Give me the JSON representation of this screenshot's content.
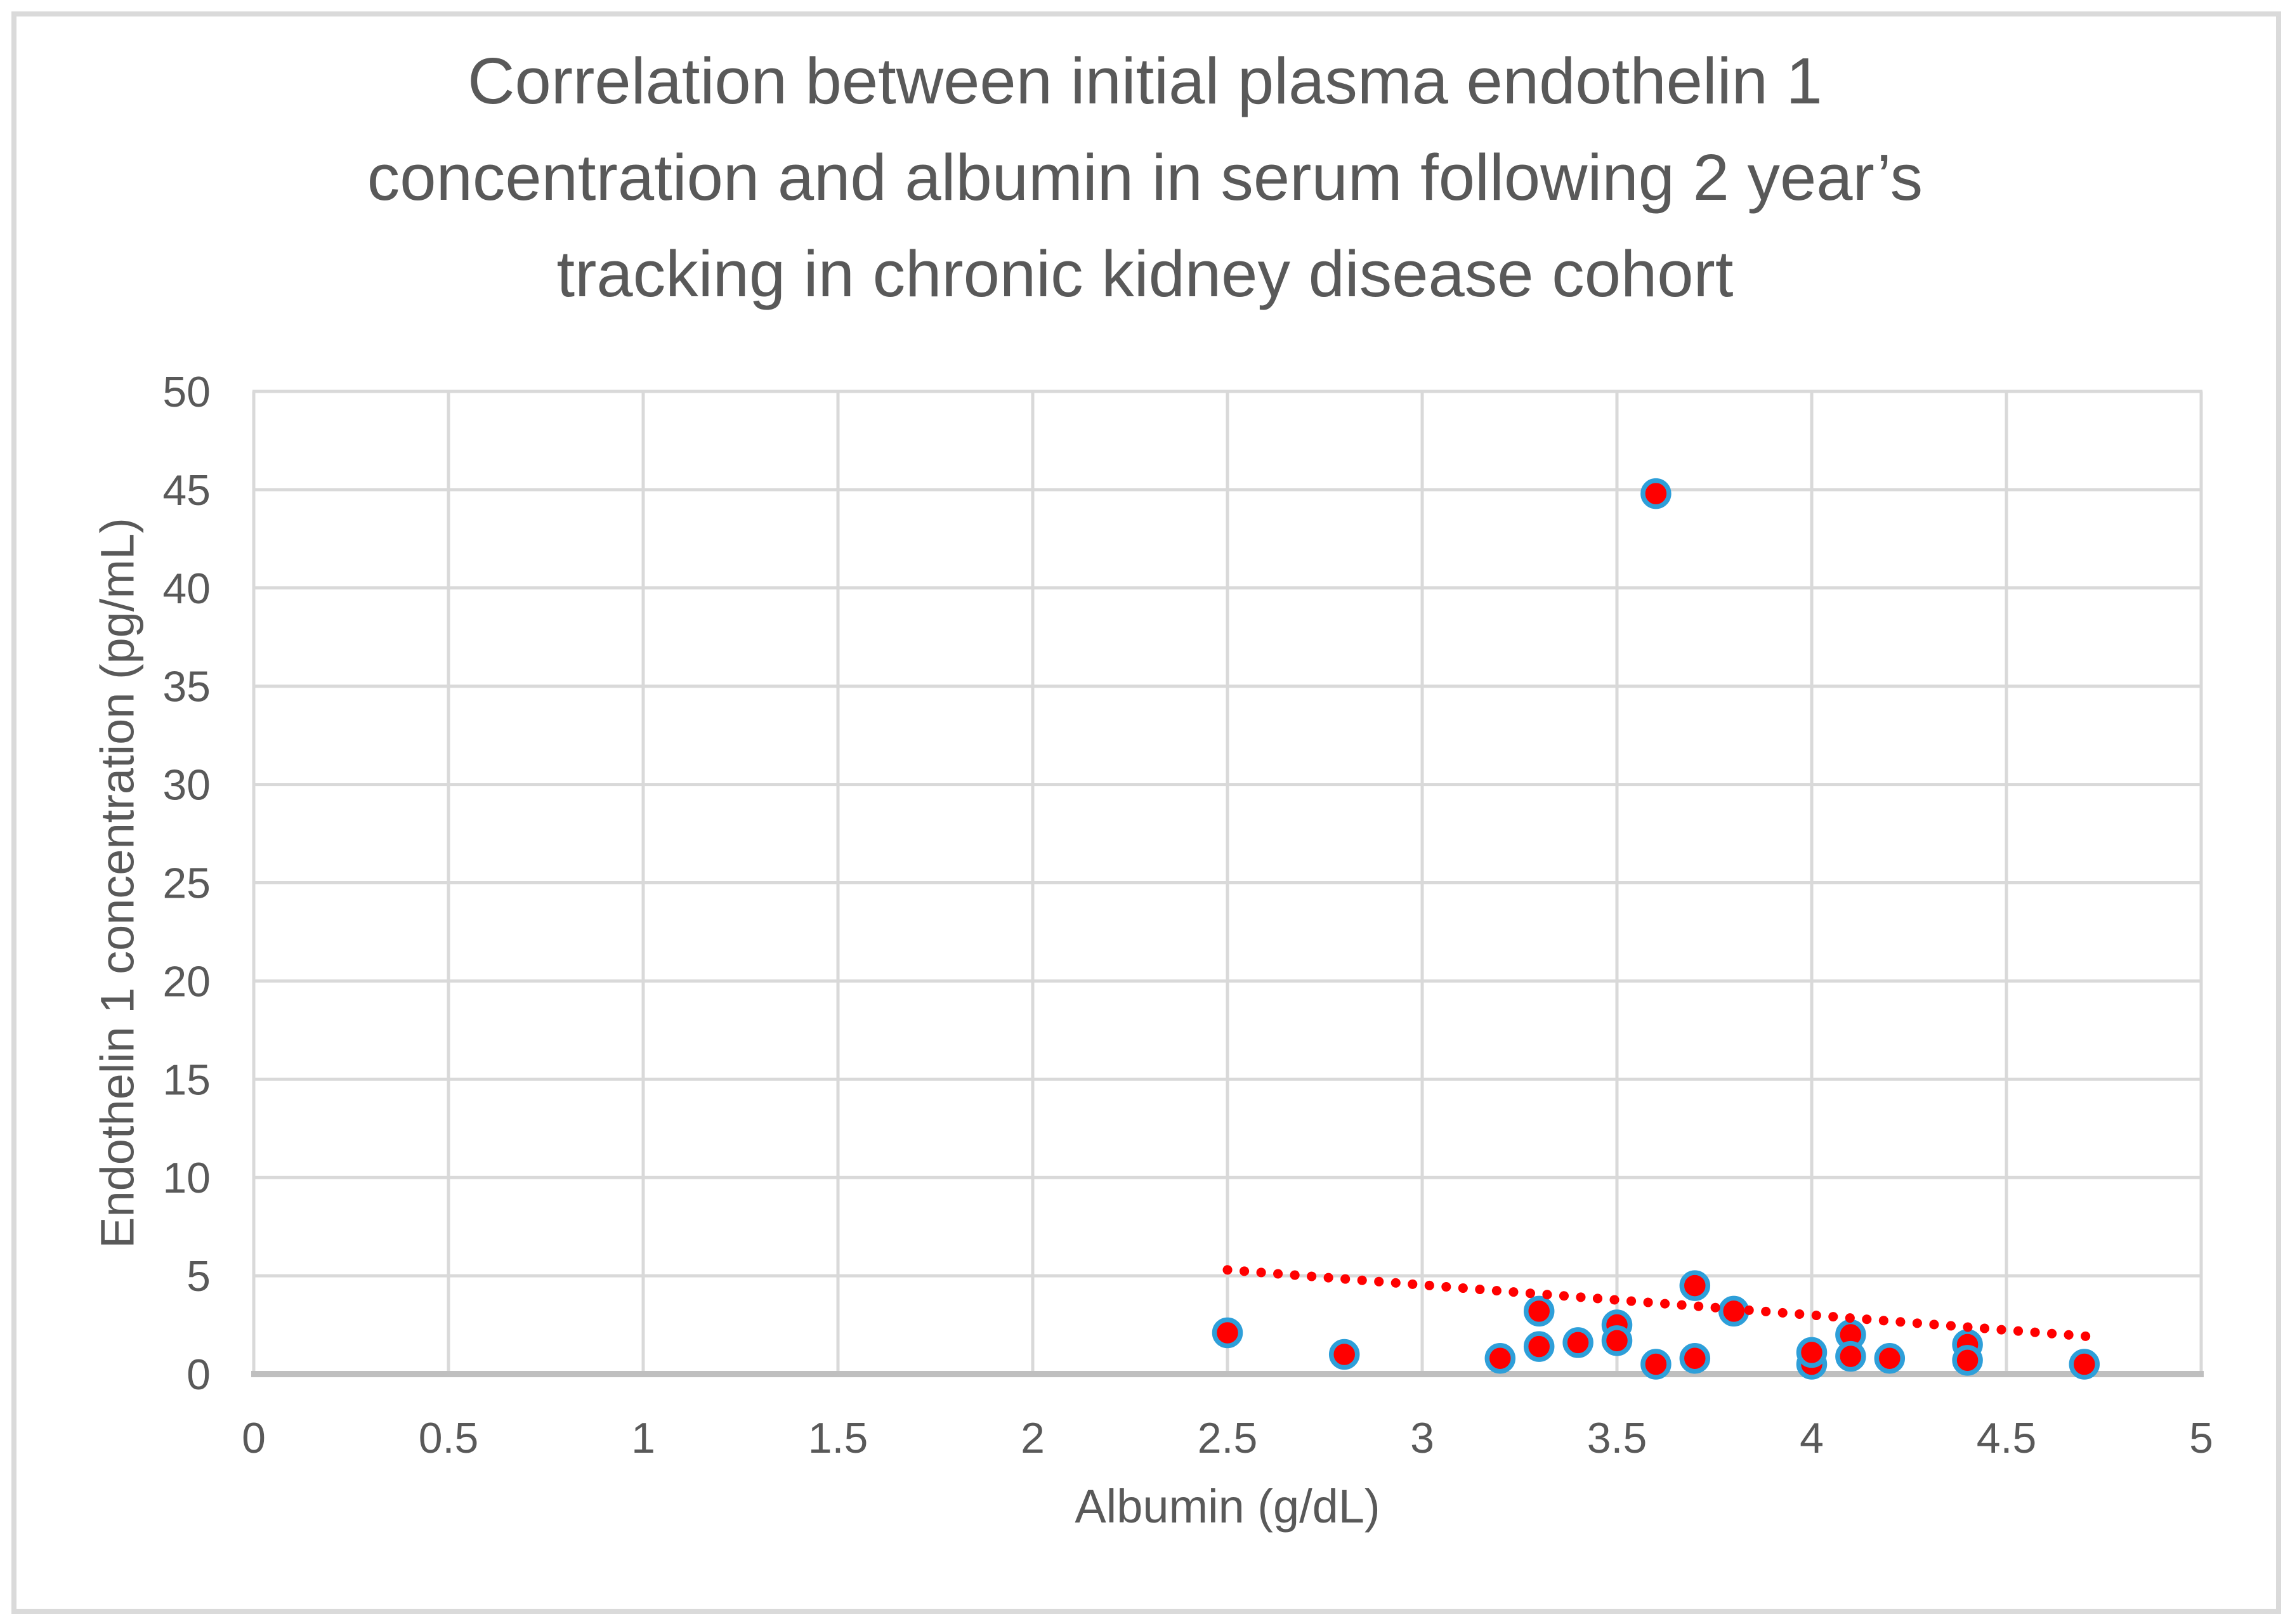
{
  "chart_data": {
    "type": "scatter",
    "title": "Correlation between initial plasma endothelin 1 concentration and albumin in serum following 2 year’s tracking in chronic kidney disease cohort",
    "title_lines": [
      "Correlation between initial plasma endothelin 1",
      "concentration and albumin in serum following 2 year’s",
      "tracking in chronic kidney disease cohort"
    ],
    "xlabel": "Albumin (g/dL)",
    "ylabel": "Endothelin 1 concentration (pg/mL)",
    "xlim": [
      0,
      5
    ],
    "ylim": [
      0,
      50
    ],
    "grid": true,
    "legend": "none",
    "x_ticks": [
      {
        "value": 0,
        "label": "0"
      },
      {
        "value": 0.5,
        "label": "0.5"
      },
      {
        "value": 1,
        "label": "1"
      },
      {
        "value": 1.5,
        "label": "1.5"
      },
      {
        "value": 2,
        "label": "2"
      },
      {
        "value": 2.5,
        "label": "2.5"
      },
      {
        "value": 3,
        "label": "3"
      },
      {
        "value": 3.5,
        "label": "3.5"
      },
      {
        "value": 4,
        "label": "4"
      },
      {
        "value": 4.5,
        "label": "4.5"
      },
      {
        "value": 5,
        "label": "5"
      }
    ],
    "y_ticks": [
      {
        "value": 0,
        "label": "0"
      },
      {
        "value": 5,
        "label": "5"
      },
      {
        "value": 10,
        "label": "10"
      },
      {
        "value": 15,
        "label": "15"
      },
      {
        "value": 20,
        "label": "20"
      },
      {
        "value": 25,
        "label": "25"
      },
      {
        "value": 30,
        "label": "30"
      },
      {
        "value": 35,
        "label": "35"
      },
      {
        "value": 40,
        "label": "40"
      },
      {
        "value": 45,
        "label": "45"
      },
      {
        "value": 50,
        "label": "50"
      }
    ],
    "points": [
      [
        2.5,
        2.1
      ],
      [
        2.8,
        1.0
      ],
      [
        3.2,
        0.8
      ],
      [
        3.3,
        3.2
      ],
      [
        3.3,
        1.4
      ],
      [
        3.4,
        1.6
      ],
      [
        3.5,
        2.5
      ],
      [
        3.5,
        1.7
      ],
      [
        3.6,
        44.8
      ],
      [
        3.6,
        0.5
      ],
      [
        3.7,
        4.5
      ],
      [
        3.7,
        0.8
      ],
      [
        3.8,
        3.2
      ],
      [
        4.0,
        0.5
      ],
      [
        4.0,
        1.1
      ],
      [
        4.1,
        2.0
      ],
      [
        4.1,
        0.9
      ],
      [
        4.2,
        0.8
      ],
      [
        4.4,
        1.5
      ],
      [
        4.4,
        0.7
      ],
      [
        4.7,
        0.5
      ]
    ],
    "trendline": {
      "style": "dotted",
      "x_start": 2.5,
      "y_start": 5.3,
      "x_end": 4.72,
      "y_end": 1.9
    },
    "colors": {
      "marker_fill": "#FF0000",
      "marker_border": "#2E9FD9",
      "trendline": "#FF0000",
      "gridline": "#D9D9D9",
      "axis_line": "#BFBFBF",
      "text": "#595959",
      "frame_border": "#DADADA",
      "background": "#FFFFFF"
    }
  }
}
